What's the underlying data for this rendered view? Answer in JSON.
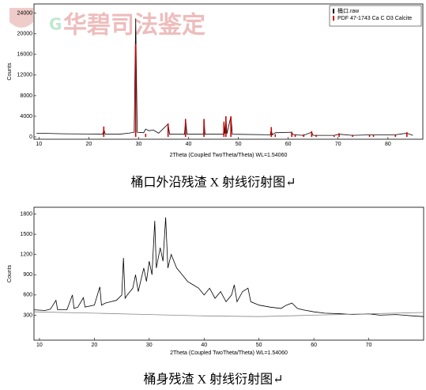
{
  "watermark": "华碧司法鉴定",
  "chart_data": [
    {
      "type": "line",
      "xlabel": "2Theta (Coupled TwoTheta/Theta) WL=1.54060",
      "ylabel": "Counts",
      "caption": "桶口外沿残渣 X 射线衍射图↵",
      "xlim": [
        9,
        87
      ],
      "ylim": [
        -460,
        25800
      ],
      "xticks": [
        10,
        20,
        30,
        40,
        50,
        60,
        70,
        80
      ],
      "yticks": [
        0,
        4000,
        8000,
        12000,
        16000,
        20000,
        24000
      ],
      "legend": "top-right",
      "series": [
        {
          "name": "桶口.raw",
          "color": "#000000",
          "mark": "line",
          "x": [
            9.5,
            15,
            20,
            22.8,
            23.0,
            23.3,
            26,
            28,
            29.1,
            29.4,
            29.7,
            31,
            31.4,
            32,
            33,
            34,
            35.9,
            36.2,
            39.2,
            39.4,
            39.7,
            43.0,
            43.1,
            43.3,
            47.0,
            47.1,
            47.3,
            47.5,
            47.7,
            48.5,
            48.8,
            56.4,
            56.6,
            56.8,
            57.4,
            60.7,
            61.0,
            63.1,
            64.7,
            65.0,
            69.2,
            70.2,
            72.9,
            77,
            81.5,
            83.8,
            85
          ],
          "values": [
            700,
            600,
            550,
            500,
            1500,
            500,
            500,
            700,
            900,
            23000,
            900,
            800,
            1500,
            1200,
            1300,
            700,
            2500,
            500,
            500,
            3500,
            500,
            500,
            3500,
            500,
            500,
            3000,
            600,
            4000,
            600,
            4000,
            500,
            400,
            1500,
            400,
            800,
            900,
            400,
            300,
            900,
            300,
            300,
            500,
            300,
            400,
            400,
            700,
            300
          ]
        },
        {
          "name": "PDF 47-1743 Ca C O3 Calcite",
          "color": "#d40000",
          "mark": "stick",
          "x": [
            23.0,
            29.4,
            31.4,
            35.9,
            39.4,
            43.1,
            47.1,
            47.5,
            48.5,
            56.6,
            57.4,
            60.7,
            61.4,
            63.1,
            64.7,
            65.6,
            69.2,
            70.2,
            72.9,
            76.3,
            77.1,
            81.5,
            83.8
          ],
          "values": [
            2000,
            18000,
            600,
            2600,
            3400,
            3400,
            2800,
            4000,
            4000,
            1900,
            500,
            1000,
            500,
            500,
            1100,
            400,
            300,
            700,
            400,
            300,
            300,
            400,
            900
          ]
        }
      ]
    },
    {
      "type": "line",
      "xlabel": "2Theta (Coupled TwoTheta/Theta) WL=1.54060",
      "ylabel": "Counts",
      "caption": "桶身残渣 X 射线衍射图↵",
      "xlim": [
        9,
        80
      ],
      "ylim": [
        -70,
        1900
      ],
      "xticks": [
        10,
        20,
        30,
        40,
        50,
        60,
        70
      ],
      "yticks": [
        300,
        600,
        900,
        1200,
        1500,
        1800
      ],
      "series": [
        {
          "color": "#000000",
          "mark": "line",
          "x": [
            9,
            11,
            12,
            13,
            13.3,
            15,
            16,
            16.3,
            17,
            18,
            18.3,
            20,
            21,
            21.3,
            22,
            23,
            24,
            25,
            25.3,
            25.6,
            26,
            27,
            27.5,
            28,
            29,
            29.5,
            30,
            30.5,
            31,
            31.3,
            32,
            32.5,
            33,
            33.4,
            34,
            35,
            36,
            37,
            38,
            39,
            40,
            41,
            42,
            43,
            44,
            45,
            45.5,
            46,
            47,
            48,
            48.5,
            50,
            52,
            54,
            55,
            56,
            57,
            58,
            60,
            62,
            65,
            67,
            70,
            72,
            75,
            78,
            80
          ],
          "values": [
            380,
            370,
            390,
            520,
            380,
            380,
            600,
            400,
            420,
            560,
            420,
            450,
            720,
            450,
            480,
            500,
            520,
            600,
            1150,
            550,
            600,
            700,
            900,
            650,
            1000,
            800,
            1100,
            900,
            1700,
            1000,
            1300,
            1100,
            1750,
            1000,
            1200,
            1000,
            900,
            800,
            750,
            700,
            600,
            700,
            550,
            650,
            500,
            600,
            750,
            500,
            650,
            700,
            500,
            450,
            420,
            400,
            450,
            480,
            400,
            380,
            350,
            330,
            320,
            310,
            320,
            300,
            310,
            290,
            280
          ]
        },
        {
          "color": "#888888",
          "mark": "line",
          "x": [
            9,
            20,
            30,
            40,
            50,
            60,
            70,
            80
          ],
          "values": [
            350,
            330,
            310,
            290,
            280,
            300,
            320,
            340
          ]
        }
      ]
    }
  ]
}
